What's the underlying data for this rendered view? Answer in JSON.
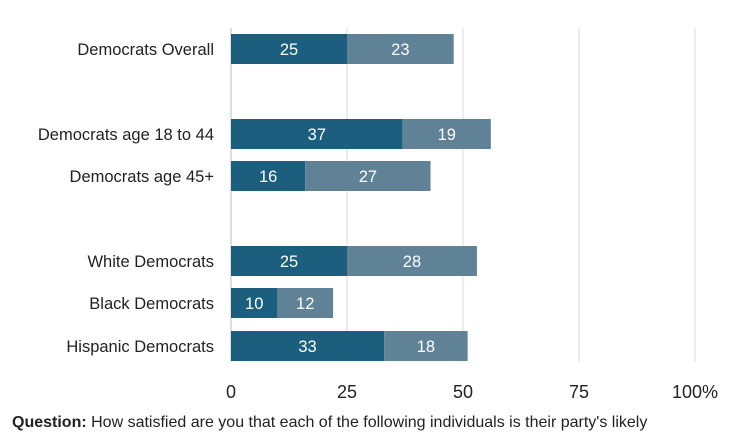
{
  "chart_data": {
    "type": "bar",
    "orientation": "horizontal",
    "stacked": true,
    "categories": [
      "Democrats Overall",
      "Democrats age 18 to 44",
      "Democrats age 45+",
      "White Democrats",
      "Black Democrats",
      "Hispanic Democrats"
    ],
    "series": [
      {
        "values": [
          25,
          37,
          16,
          25,
          10,
          33
        ],
        "color": "#1b5e7e"
      },
      {
        "values": [
          23,
          19,
          27,
          28,
          12,
          18
        ],
        "color": "#5f8296"
      }
    ],
    "xlim": [
      0,
      100
    ],
    "x_ticks": [
      "0",
      "25",
      "50",
      "75",
      "100%"
    ],
    "x_tick_values": [
      0,
      25,
      50,
      75,
      100
    ],
    "grid": true
  },
  "footnote": {
    "prefix": "Question:",
    "text": "How satisfied are you that each of the following individuals is their party's likely"
  }
}
